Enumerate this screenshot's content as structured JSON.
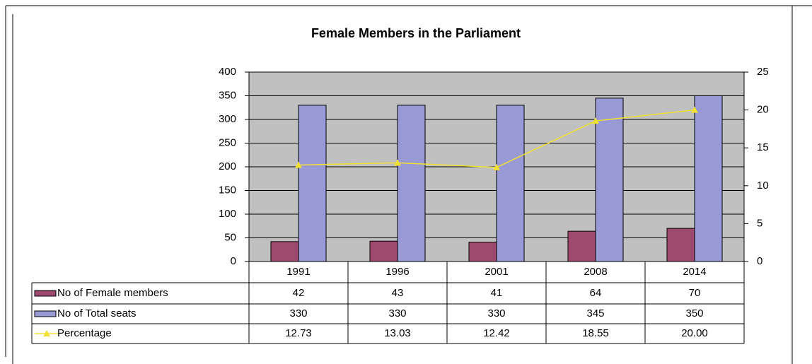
{
  "chart_data": {
    "type": "bar",
    "title": "Female Members in the Parliament",
    "categories": [
      "1991",
      "1996",
      "2001",
      "2008",
      "2014"
    ],
    "series": [
      {
        "name": "No of Female members",
        "color": "#9e4a6e",
        "values": [
          42,
          43,
          41,
          64,
          70
        ]
      },
      {
        "name": "No of Total seats",
        "color": "#9999d6",
        "values": [
          330,
          330,
          330,
          345,
          350
        ]
      },
      {
        "name": "Percentage",
        "color": "#f0e030",
        "type": "line",
        "axis": "y2",
        "values": [
          12.73,
          13.03,
          12.42,
          18.55,
          20.0
        ],
        "value_labels": [
          "12.73",
          "13.03",
          "12.42",
          "18.55",
          "20.00"
        ]
      }
    ],
    "ylim": [
      0,
      400
    ],
    "yticks": [
      0,
      50,
      100,
      150,
      200,
      250,
      300,
      350,
      400
    ],
    "y2lim": [
      0,
      25
    ],
    "y2ticks": [
      0,
      5,
      10,
      15,
      20,
      25
    ],
    "grid": true
  }
}
